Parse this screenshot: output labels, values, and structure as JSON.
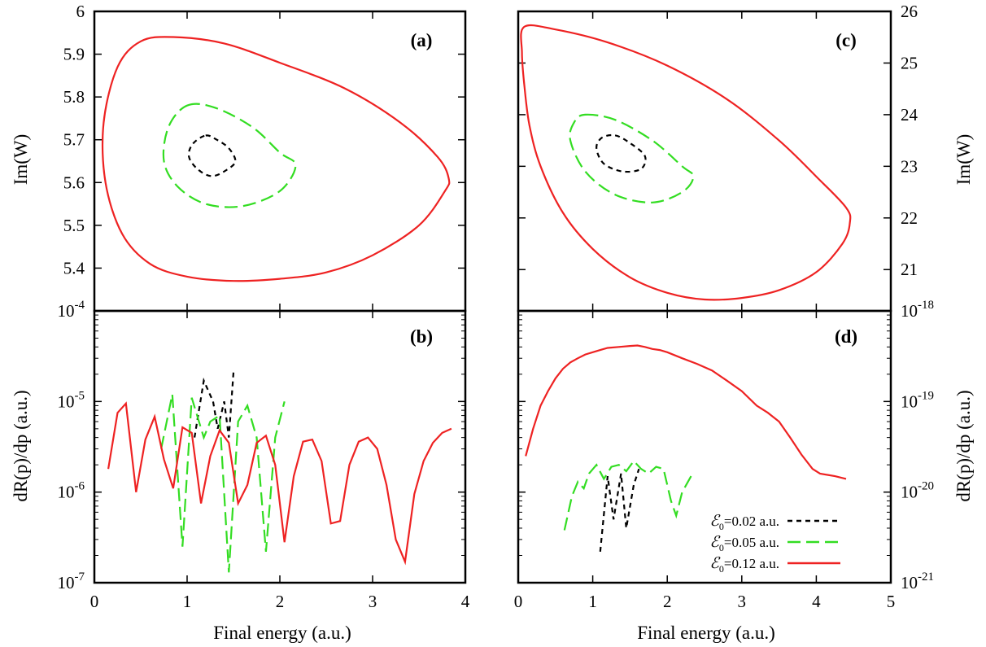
{
  "figure": {
    "xlabel_left": "Final energy (a.u.)",
    "xlabel_right": "Final energy (a.u.)",
    "ylabel_top_left": "Im(W)",
    "ylabel_top_right": "Im(W)",
    "ylabel_bottom_left": "dR(p)/dp (a.u.)",
    "ylabel_bottom_right": "dR(p)/dp (a.u.)",
    "colors": {
      "E002": "#000000",
      "E005": "#33dd22",
      "E012": "#ee2222"
    },
    "legend": [
      {
        "prefix": "ℰ",
        "sub": "0",
        "text": "=0.02 a.u.",
        "color": "#000000",
        "style": "short-dash"
      },
      {
        "prefix": "ℰ",
        "sub": "0",
        "text": "=0.05 a.u.",
        "color": "#33dd22",
        "style": "long-dash"
      },
      {
        "prefix": "ℰ",
        "sub": "0",
        "text": "=0.12 a.u.",
        "color": "#ee2222",
        "style": "solid"
      }
    ]
  },
  "chart_data": [
    {
      "panel": "(a)",
      "type": "line",
      "xlim": [
        0,
        4
      ],
      "ylim": [
        5.3,
        6.0
      ],
      "xticks": [
        "0",
        "1",
        "2",
        "3",
        "4"
      ],
      "yticks": [
        "5.4",
        "5.5",
        "5.6",
        "5.7",
        "5.8",
        "5.9",
        "6"
      ],
      "ylabel": "Im(W)",
      "series": [
        {
          "name": "ℰ₀=0.02 a.u.",
          "style": "short-dash",
          "closed": true,
          "points": [
            [
              1.2,
              5.71
            ],
            [
              1.32,
              5.7
            ],
            [
              1.45,
              5.68
            ],
            [
              1.52,
              5.65
            ],
            [
              1.43,
              5.63
            ],
            [
              1.27,
              5.615
            ],
            [
              1.12,
              5.63
            ],
            [
              1.02,
              5.66
            ],
            [
              1.06,
              5.69
            ]
          ]
        },
        {
          "name": "ℰ₀=0.05 a.u.",
          "style": "long-dash",
          "closed": true,
          "points": [
            [
              1.0,
              5.78
            ],
            [
              1.3,
              5.775
            ],
            [
              1.7,
              5.73
            ],
            [
              2.0,
              5.67
            ],
            [
              2.17,
              5.64
            ],
            [
              2.0,
              5.58
            ],
            [
              1.6,
              5.545
            ],
            [
              1.2,
              5.55
            ],
            [
              0.9,
              5.59
            ],
            [
              0.75,
              5.65
            ],
            [
              0.8,
              5.73
            ]
          ]
        },
        {
          "name": "ℰ₀=0.12 a.u.",
          "style": "solid",
          "closed": true,
          "points": [
            [
              0.85,
              5.94
            ],
            [
              0.5,
              5.93
            ],
            [
              0.25,
              5.87
            ],
            [
              0.1,
              5.74
            ],
            [
              0.12,
              5.6
            ],
            [
              0.3,
              5.48
            ],
            [
              0.6,
              5.41
            ],
            [
              1.0,
              5.38
            ],
            [
              1.5,
              5.37
            ],
            [
              2.0,
              5.375
            ],
            [
              2.5,
              5.39
            ],
            [
              3.0,
              5.43
            ],
            [
              3.5,
              5.5
            ],
            [
              3.78,
              5.58
            ],
            [
              3.82,
              5.61
            ],
            [
              3.7,
              5.66
            ],
            [
              3.3,
              5.74
            ],
            [
              2.7,
              5.82
            ],
            [
              2.0,
              5.88
            ],
            [
              1.4,
              5.925
            ]
          ]
        }
      ]
    },
    {
      "panel": "(b)",
      "type": "line",
      "ylog": true,
      "xlim": [
        0,
        4
      ],
      "ylim": [
        1e-07,
        0.0001
      ],
      "xticks": [
        "0",
        "1",
        "2",
        "3",
        "4"
      ],
      "ytick_values": [
        1e-07,
        1e-06,
        1e-05,
        0.0001
      ],
      "yticks": [
        {
          "base": "10",
          "exp": "-7"
        },
        {
          "base": "10",
          "exp": "-6"
        },
        {
          "base": "10",
          "exp": "-5"
        },
        {
          "base": "10",
          "exp": "-4"
        }
      ],
      "ylabel": "dR(p)/dp (a.u.)",
      "series": [
        {
          "name": "ℰ₀=0.02 a.u.",
          "style": "short-dash",
          "points": [
            [
              1.08,
              4e-06
            ],
            [
              1.18,
              1.7e-05
            ],
            [
              1.28,
              1e-05
            ],
            [
              1.33,
              5e-06
            ],
            [
              1.4,
              1e-05
            ],
            [
              1.45,
              4e-06
            ],
            [
              1.5,
              2.1e-05
            ]
          ]
        },
        {
          "name": "ℰ₀=0.05 a.u.",
          "style": "long-dash",
          "points": [
            [
              0.72,
              3e-06
            ],
            [
              0.84,
              1.2e-05
            ],
            [
              0.95,
              2.5e-07
            ],
            [
              1.05,
              1.1e-05
            ],
            [
              1.18,
              4e-06
            ],
            [
              1.25,
              6e-06
            ],
            [
              1.35,
              7e-06
            ],
            [
              1.45,
              1.3e-07
            ],
            [
              1.55,
              6e-06
            ],
            [
              1.65,
              9e-06
            ],
            [
              1.75,
              4e-06
            ],
            [
              1.85,
              2.2e-07
            ],
            [
              1.95,
              4e-06
            ],
            [
              2.05,
              1e-05
            ]
          ]
        },
        {
          "name": "ℰ₀=0.12 a.u.",
          "style": "solid",
          "points": [
            [
              0.15,
              1.8e-06
            ],
            [
              0.25,
              7.5e-06
            ],
            [
              0.34,
              9.5e-06
            ],
            [
              0.45,
              1e-06
            ],
            [
              0.55,
              3.8e-06
            ],
            [
              0.65,
              6.8e-06
            ],
            [
              0.75,
              2.3e-06
            ],
            [
              0.85,
              1.1e-06
            ],
            [
              0.95,
              5.2e-06
            ],
            [
              1.05,
              4.5e-06
            ],
            [
              1.15,
              7.5e-07
            ],
            [
              1.25,
              2.5e-06
            ],
            [
              1.35,
              4.8e-06
            ],
            [
              1.45,
              3.5e-06
            ],
            [
              1.55,
              7.5e-07
            ],
            [
              1.65,
              1.2e-06
            ],
            [
              1.75,
              3.5e-06
            ],
            [
              1.85,
              4.2e-06
            ],
            [
              1.95,
              2e-06
            ],
            [
              2.05,
              2.8e-07
            ],
            [
              2.15,
              1.5e-06
            ],
            [
              2.25,
              3.6e-06
            ],
            [
              2.35,
              3.8e-06
            ],
            [
              2.45,
              2.2e-06
            ],
            [
              2.55,
              4.5e-07
            ],
            [
              2.65,
              4.8e-07
            ],
            [
              2.75,
              2e-06
            ],
            [
              2.85,
              3.6e-06
            ],
            [
              2.95,
              4e-06
            ],
            [
              3.05,
              3e-06
            ],
            [
              3.15,
              1.2e-06
            ],
            [
              3.25,
              3e-07
            ],
            [
              3.35,
              1.7e-07
            ],
            [
              3.45,
              9.5e-07
            ],
            [
              3.55,
              2.2e-06
            ],
            [
              3.65,
              3.5e-06
            ],
            [
              3.75,
              4.5e-06
            ],
            [
              3.85,
              5e-06
            ]
          ]
        }
      ]
    },
    {
      "panel": "(c)",
      "type": "line",
      "xlim": [
        0,
        5
      ],
      "ylim": [
        20.2,
        26.0
      ],
      "xticks": [
        "0",
        "1",
        "2",
        "3",
        "4",
        "5"
      ],
      "yticks": [
        "21",
        "22",
        "23",
        "24",
        "25",
        "26"
      ],
      "ylabel": "Im(W)",
      "series": [
        {
          "name": "ℰ₀=0.02 a.u.",
          "style": "short-dash",
          "closed": true,
          "points": [
            [
              1.3,
              23.6
            ],
            [
              1.5,
              23.45
            ],
            [
              1.7,
              23.2
            ],
            [
              1.65,
              22.95
            ],
            [
              1.4,
              22.9
            ],
            [
              1.15,
              23.05
            ],
            [
              1.05,
              23.35
            ],
            [
              1.12,
              23.55
            ]
          ]
        },
        {
          "name": "ℰ₀=0.05 a.u.",
          "style": "long-dash",
          "closed": true,
          "points": [
            [
              0.9,
              24.0
            ],
            [
              1.3,
              23.9
            ],
            [
              1.8,
              23.5
            ],
            [
              2.2,
              23.0
            ],
            [
              2.35,
              22.8
            ],
            [
              2.2,
              22.5
            ],
            [
              1.8,
              22.3
            ],
            [
              1.3,
              22.45
            ],
            [
              0.9,
              22.9
            ],
            [
              0.7,
              23.5
            ],
            [
              0.75,
              23.85
            ]
          ]
        },
        {
          "name": "ℰ₀=0.12 a.u.",
          "style": "solid",
          "closed": true,
          "points": [
            [
              0.08,
              25.7
            ],
            [
              0.05,
              25.2
            ],
            [
              0.08,
              24.6
            ],
            [
              0.15,
              23.8
            ],
            [
              0.3,
              23.0
            ],
            [
              0.6,
              22.1
            ],
            [
              1.0,
              21.4
            ],
            [
              1.5,
              20.85
            ],
            [
              2.0,
              20.55
            ],
            [
              2.5,
              20.42
            ],
            [
              3.0,
              20.45
            ],
            [
              3.5,
              20.6
            ],
            [
              4.0,
              20.95
            ],
            [
              4.35,
              21.5
            ],
            [
              4.45,
              21.9
            ],
            [
              4.4,
              22.2
            ],
            [
              4.0,
              22.8
            ],
            [
              3.5,
              23.5
            ],
            [
              2.8,
              24.3
            ],
            [
              2.0,
              24.95
            ],
            [
              1.2,
              25.4
            ],
            [
              0.5,
              25.65
            ]
          ]
        }
      ]
    },
    {
      "panel": "(d)",
      "type": "line",
      "ylog": true,
      "xlim": [
        0,
        5
      ],
      "ylim": [
        1e-21,
        1e-18
      ],
      "xticks": [
        "0",
        "1",
        "2",
        "3",
        "4",
        "5"
      ],
      "ytick_values": [
        1e-21,
        1e-20,
        1e-19,
        1e-18
      ],
      "yticks": [
        {
          "base": "10",
          "exp": "-21"
        },
        {
          "base": "10",
          "exp": "-20"
        },
        {
          "base": "10",
          "exp": "-19"
        },
        {
          "base": "10",
          "exp": "-18"
        }
      ],
      "ylabel": "dR(p)/dp (a.u.)",
      "series": [
        {
          "name": "ℰ₀=0.02 a.u.",
          "style": "short-dash",
          "points": [
            [
              1.1,
              2.2e-21
            ],
            [
              1.2,
              1.5e-20
            ],
            [
              1.28,
              5e-21
            ],
            [
              1.38,
              1.6e-20
            ],
            [
              1.45,
              4e-21
            ],
            [
              1.55,
              1.2e-20
            ],
            [
              1.62,
              1.8e-20
            ]
          ]
        },
        {
          "name": "ℰ₀=0.05 a.u.",
          "style": "long-dash",
          "points": [
            [
              0.62,
              3.8e-21
            ],
            [
              0.72,
              9e-21
            ],
            [
              0.8,
              1.3e-20
            ],
            [
              0.88,
              1.1e-20
            ],
            [
              0.95,
              1.6e-20
            ],
            [
              1.05,
              2e-20
            ],
            [
              1.15,
              1.4e-20
            ],
            [
              1.25,
              1.9e-20
            ],
            [
              1.35,
              2e-20
            ],
            [
              1.45,
              1.7e-20
            ],
            [
              1.55,
              2.2e-20
            ],
            [
              1.65,
              1.8e-20
            ],
            [
              1.75,
              1.6e-20
            ],
            [
              1.85,
              1.9e-20
            ],
            [
              1.95,
              1.8e-20
            ],
            [
              2.05,
              8e-21
            ],
            [
              2.12,
              5.5e-21
            ],
            [
              2.2,
              1e-20
            ],
            [
              2.32,
              1.5e-20
            ]
          ]
        },
        {
          "name": "ℰ₀=0.12 a.u.",
          "style": "solid",
          "points": [
            [
              0.1,
              2.5e-20
            ],
            [
              0.2,
              5e-20
            ],
            [
              0.3,
              9e-20
            ],
            [
              0.4,
              1.3e-19
            ],
            [
              0.5,
              1.8e-19
            ],
            [
              0.6,
              2.3e-19
            ],
            [
              0.7,
              2.7e-19
            ],
            [
              0.8,
              3e-19
            ],
            [
              0.9,
              3.3e-19
            ],
            [
              1.0,
              3.5e-19
            ],
            [
              1.1,
              3.7e-19
            ],
            [
              1.2,
              3.9e-19
            ],
            [
              1.35,
              4e-19
            ],
            [
              1.5,
              4.1e-19
            ],
            [
              1.6,
              4.15e-19
            ],
            [
              1.7,
              4e-19
            ],
            [
              1.8,
              3.8e-19
            ],
            [
              1.9,
              3.7e-19
            ],
            [
              2.0,
              3.5e-19
            ],
            [
              2.2,
              3e-19
            ],
            [
              2.4,
              2.6e-19
            ],
            [
              2.6,
              2.2e-19
            ],
            [
              2.8,
              1.7e-19
            ],
            [
              3.0,
              1.3e-19
            ],
            [
              3.2,
              9e-20
            ],
            [
              3.35,
              7.5e-20
            ],
            [
              3.5,
              6e-20
            ],
            [
              3.65,
              4e-20
            ],
            [
              3.8,
              2.6e-20
            ],
            [
              3.95,
              1.8e-20
            ],
            [
              4.05,
              1.6e-20
            ],
            [
              4.15,
              1.55e-20
            ],
            [
              4.25,
              1.5e-20
            ],
            [
              4.4,
              1.4e-20
            ]
          ]
        }
      ]
    }
  ],
  "panel_labels": [
    "(a)",
    "(b)",
    "(c)",
    "(d)"
  ]
}
